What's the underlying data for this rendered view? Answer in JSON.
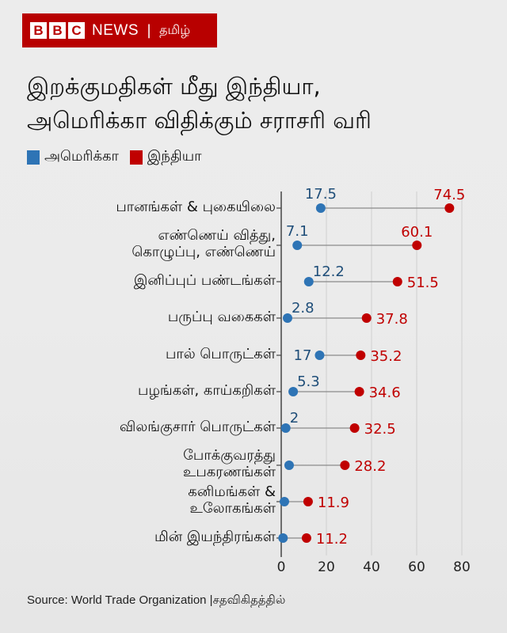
{
  "header": {
    "brand_blocks": [
      "B",
      "B",
      "C"
    ],
    "brand_news": "NEWS",
    "separator": "|",
    "language": "தமிழ்"
  },
  "title": {
    "line1": "இறக்குமதிகள் மீது இந்தியா,",
    "line2": "அமெரிக்கா விதிக்கும் சராசரி வரி"
  },
  "legend": [
    {
      "label": "அமெரிக்கா",
      "color": "#2e74b5"
    },
    {
      "label": "இந்தியா",
      "color": "#c00000"
    }
  ],
  "footer": {
    "source": "Source: World Trade Organization |சதவிகிதத்தில்"
  },
  "chart_data": {
    "type": "dumbbell",
    "title": "இறக்குமதிகள் மீது இந்தியா, அமெரிக்கா விதிக்கும் சராசரி வரி",
    "xlabel": "",
    "ylabel": "",
    "xlim": [
      0,
      80
    ],
    "xticks": [
      0,
      20,
      40,
      60,
      80
    ],
    "grid": "vertical",
    "legend_position": "top-left",
    "categories": [
      [
        "பானங்கள் & புகையிலை"
      ],
      [
        "எண்ணெய் வித்து,",
        "கொழுப்பு, எண்ணெய்"
      ],
      [
        "இனிப்புப் பண்டங்கள்"
      ],
      [
        "பருப்பு வகைகள்"
      ],
      [
        "பால் பொருட்கள்"
      ],
      [
        "பழங்கள், காய்கறிகள்"
      ],
      [
        "விலங்குசார் பொருட்கள்"
      ],
      [
        "போக்குவரத்து",
        "உபகரணங்கள்"
      ],
      [
        "கனிமங்கள் &",
        "உலோகங்கள்"
      ],
      [
        "மின் இயந்திரங்கள்"
      ]
    ],
    "series": [
      {
        "name": "அமெரிக்கா",
        "color": "#2e74b5",
        "label_color": "#1f4e79",
        "values": [
          17.5,
          7.1,
          12.2,
          2.8,
          17,
          5.3,
          2,
          3.5,
          1.4,
          0.8
        ],
        "labels": [
          "17.5",
          "7.1",
          "12.2",
          "2.8",
          "17",
          "5.3",
          "2",
          "",
          "",
          ""
        ]
      },
      {
        "name": "இந்தியா",
        "color": "#c00000",
        "label_color": "#c00000",
        "values": [
          74.5,
          60.1,
          51.5,
          37.8,
          35.2,
          34.6,
          32.5,
          28.2,
          11.9,
          11.2
        ],
        "labels": [
          "74.5",
          "60.1",
          "51.5",
          "37.8",
          "35.2",
          "34.6",
          "32.5",
          "28.2",
          "11.9",
          "11.2"
        ]
      }
    ]
  }
}
